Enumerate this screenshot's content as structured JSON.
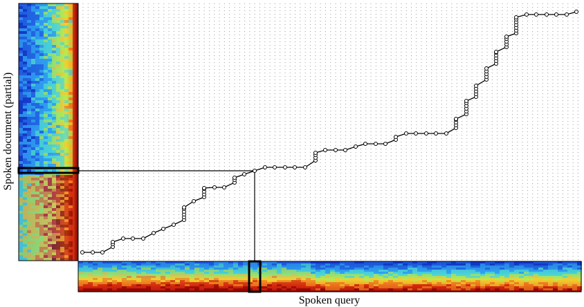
{
  "labels": {
    "document_axis": "Spoken document (partial)",
    "query_axis": "Spoken query"
  }
}
